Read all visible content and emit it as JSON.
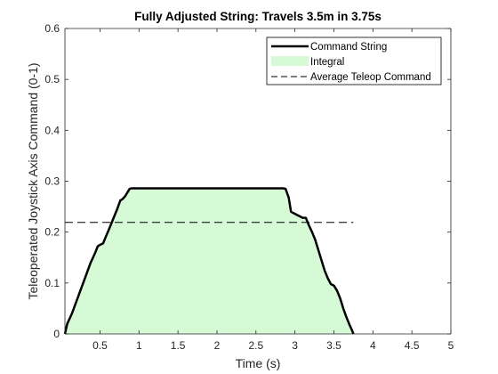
{
  "chart_data": {
    "type": "area",
    "title": "Fully Adjusted String: Travels 3.5m in 3.75s",
    "xlabel": "Time (s)",
    "ylabel": "Teleoperated Joystick Axis Command (0-1)",
    "xlim": [
      0.05,
      5
    ],
    "ylim": [
      0,
      0.6
    ],
    "x_ticks": [
      0.5,
      1,
      1.5,
      2,
      2.5,
      3,
      3.5,
      4,
      4.5,
      5
    ],
    "x_tick_labels": [
      "0.5",
      "1",
      "1.5",
      "2",
      "2.5",
      "3",
      "3.5",
      "4",
      "4.5",
      "5"
    ],
    "y_ticks": [
      0,
      0.1,
      0.2,
      0.3,
      0.4,
      0.5,
      0.6
    ],
    "y_tick_labels": [
      "0",
      "0.1",
      "0.2",
      "0.3",
      "0.4",
      "0.5",
      "0.6"
    ],
    "grid": false,
    "legend_position": "top-right",
    "legend": [
      "Command String",
      "Integral",
      "Average Teleop Command"
    ],
    "series": [
      {
        "name": "Command String",
        "style": "solid",
        "color": "#000000",
        "fill_name": "Integral",
        "fill_color": "#d6fad6",
        "x": [
          0.05,
          0.08,
          0.14,
          0.2,
          0.26,
          0.32,
          0.38,
          0.41,
          0.44,
          0.47,
          0.5,
          0.54,
          0.58,
          0.6,
          0.64,
          0.68,
          0.72,
          0.76,
          0.79,
          0.82,
          0.86,
          0.88,
          0.9,
          0.93,
          1.0,
          1.5,
          2.0,
          2.5,
          2.85,
          2.88,
          2.92,
          2.95,
          3.0,
          3.05,
          3.1,
          3.14,
          3.18,
          3.22,
          3.26,
          3.3,
          3.34,
          3.38,
          3.42,
          3.46,
          3.5,
          3.54,
          3.58,
          3.62,
          3.66,
          3.7,
          3.73,
          3.75
        ],
        "y": [
          0,
          0.02,
          0.04,
          0.065,
          0.09,
          0.115,
          0.14,
          0.15,
          0.16,
          0.172,
          0.175,
          0.178,
          0.193,
          0.2,
          0.215,
          0.23,
          0.245,
          0.262,
          0.265,
          0.27,
          0.28,
          0.285,
          0.286,
          0.286,
          0.286,
          0.286,
          0.286,
          0.286,
          0.286,
          0.285,
          0.268,
          0.24,
          0.236,
          0.232,
          0.228,
          0.228,
          0.213,
          0.2,
          0.185,
          0.165,
          0.145,
          0.125,
          0.11,
          0.098,
          0.095,
          0.085,
          0.07,
          0.05,
          0.033,
          0.018,
          0.008,
          0
        ]
      },
      {
        "name": "Average Teleop Command",
        "style": "dashed",
        "color": "#000000",
        "x": [
          0.05,
          3.75
        ],
        "y": [
          0.219,
          0.219
        ]
      }
    ]
  }
}
